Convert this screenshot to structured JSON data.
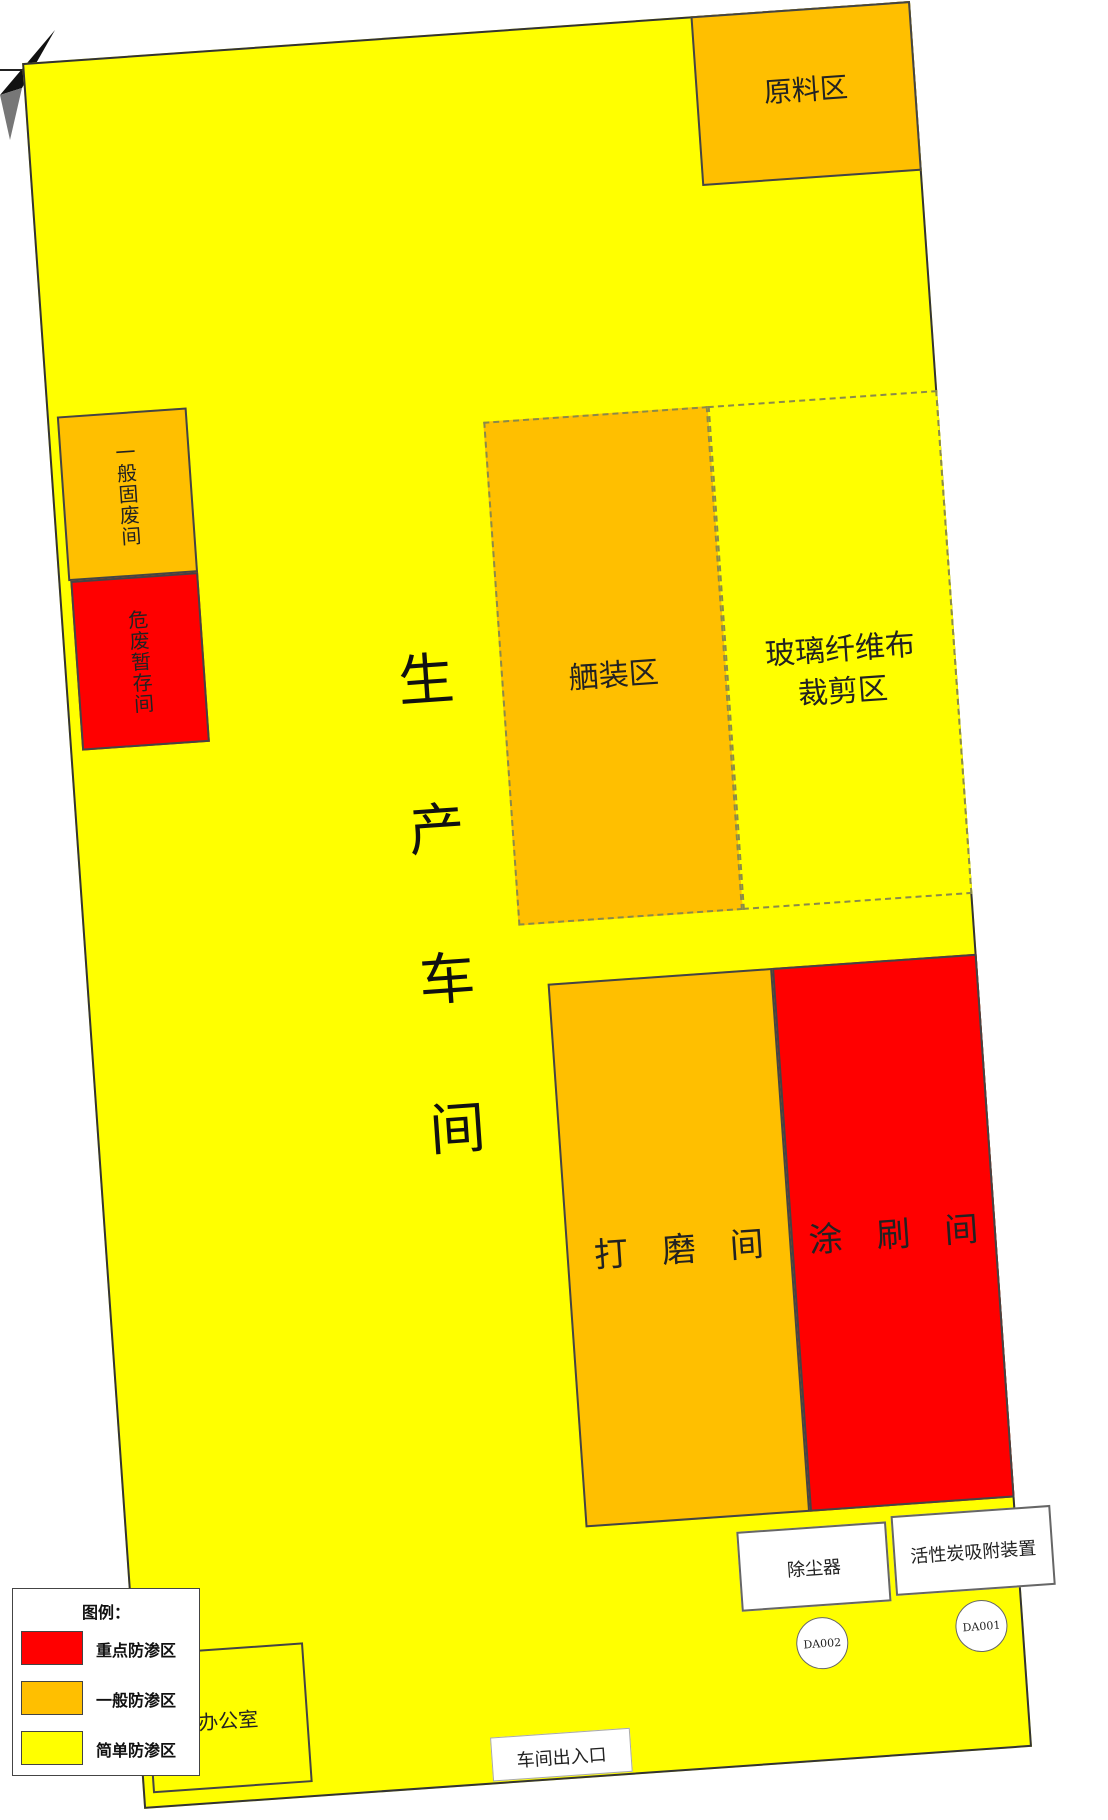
{
  "zones": {
    "raw_material": "原料区",
    "general_solid_waste": "一般固废间",
    "hazardous_waste": "危废暂存间",
    "workshop": "生\n产\n车\n间",
    "packaging": "舾装区",
    "fiberglass_cutting": "玻璃纤维布\n裁剪区",
    "grinding": "打　磨　间",
    "painting": "涂　刷　间",
    "dust_collector": "除尘器",
    "carbon_adsorption": "活性炭吸附装置",
    "office": "办公室",
    "entrance": "车间出入口"
  },
  "outlets": {
    "da002": "DA002",
    "da001": "DA001"
  },
  "legend": {
    "title": "图例：",
    "items": [
      {
        "label": "重点防渗区",
        "color": "#ff0000"
      },
      {
        "label": "一般防渗区",
        "color": "#ffbf00"
      },
      {
        "label": "简单防渗区",
        "color": "#ffff00"
      }
    ]
  },
  "colors": {
    "key_zone": "#ff0000",
    "general_zone": "#ffbf00",
    "simple_zone": "#ffff00"
  },
  "icons": {
    "north_arrow": "north-arrow-icon"
  }
}
